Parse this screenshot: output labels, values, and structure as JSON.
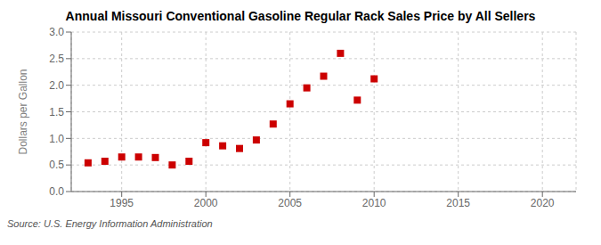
{
  "chart_data": {
    "type": "scatter",
    "title": "Annual Missouri Conventional Gasoline Regular Rack Sales Price by All Sellers",
    "y_label": "Dollars per Gallon",
    "annotations": [
      "Source: U.S. Energy Information Administration"
    ],
    "x": [
      1993,
      1994,
      1995,
      1996,
      1997,
      1998,
      1999,
      2000,
      2001,
      2002,
      2003,
      2004,
      2005,
      2006,
      2007,
      2008,
      2009,
      2010
    ],
    "values": [
      0.54,
      0.57,
      0.65,
      0.65,
      0.64,
      0.5,
      0.57,
      0.92,
      0.86,
      0.81,
      0.97,
      1.27,
      1.65,
      1.95,
      2.17,
      2.6,
      1.72,
      2.12
    ],
    "color": "#cc0000",
    "marker": "square",
    "xlim": [
      1992,
      2022
    ],
    "ylim": [
      0.0,
      3.0
    ],
    "xticks": [
      1995,
      2000,
      2005,
      2010,
      2015,
      2020
    ],
    "yticks": [
      {
        "value": 0.0,
        "label": "0.0"
      },
      0.5,
      {
        "value": 1.0,
        "label": "1.0"
      },
      1.5,
      {
        "value": 2.0,
        "label": "2.0"
      },
      2.5,
      {
        "value": 3.0,
        "label": "3.0"
      }
    ],
    "grid": true
  }
}
